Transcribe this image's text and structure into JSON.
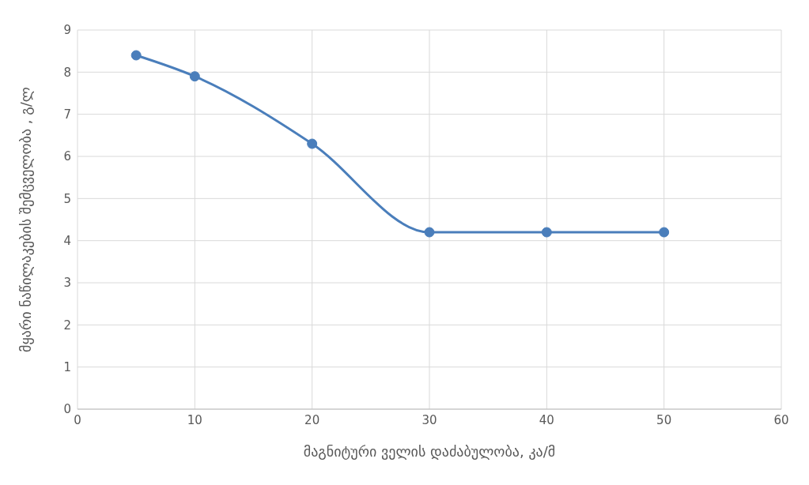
{
  "chart_data": {
    "type": "line",
    "xlabel": "მაგნიტური ველის დაძაბულობა, კა/მ",
    "ylabel": "მყარი ნაწილაკების შემცველობა , გ/ლ",
    "x": [
      5,
      10,
      20,
      30,
      40,
      50
    ],
    "series": [
      {
        "color": "#4a7ebb",
        "values": [
          8.4,
          7.9,
          6.3,
          4.2,
          4.2,
          4.2
        ]
      }
    ],
    "xlim": [
      0,
      60
    ],
    "xticks": [
      0,
      10,
      20,
      30,
      40,
      50,
      60
    ],
    "ylim": [
      0,
      9
    ],
    "yticks": [
      0,
      1,
      2,
      3,
      4,
      5,
      6,
      7,
      8,
      9
    ],
    "grid": true,
    "marker": "circle",
    "line_style": "solid"
  }
}
